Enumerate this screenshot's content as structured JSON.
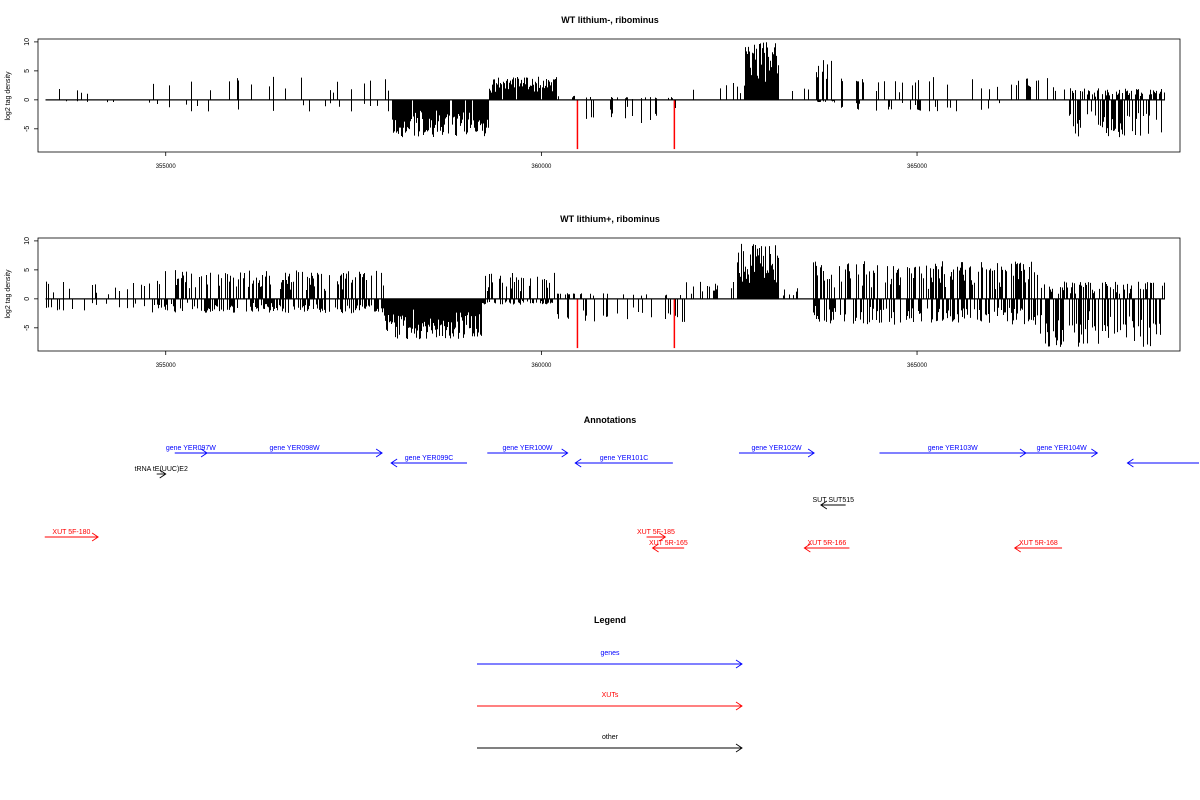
{
  "chart_data": [
    {
      "type": "bar",
      "title": "WT lithium-, ribominus",
      "ylabel": "log2 tag density",
      "xlim": [
        353300,
        368500
      ],
      "ylim": [
        -9,
        10.5
      ],
      "xticks": [
        355000,
        360000,
        365000
      ],
      "xtick_labels": [
        "355000",
        "360000",
        "365000"
      ],
      "yticks": [
        -5,
        0,
        5,
        10
      ],
      "ytick_labels": [
        "-5",
        "0",
        "5",
        "10"
      ],
      "line_color": "#000000",
      "highlight_color": "#ff0000",
      "highlights": [
        {
          "x": 360480,
          "value": -8.5
        },
        {
          "x": 361770,
          "value": -8.5
        }
      ],
      "segments": [
        {
          "from": 353400,
          "to": 354800,
          "min": -0.5,
          "max": 2.0,
          "density": 0.1
        },
        {
          "from": 354800,
          "to": 358000,
          "min": -2.0,
          "max": 4.0,
          "density": 0.16
        },
        {
          "from": 358000,
          "to": 359300,
          "min": -6.5,
          "max": 0.0,
          "density": 0.95
        },
        {
          "from": 359300,
          "to": 360200,
          "min": 0.0,
          "max": 4.0,
          "density": 0.95
        },
        {
          "from": 360200,
          "to": 360500,
          "min": 0.0,
          "max": 1.0,
          "density": 0.2
        },
        {
          "from": 360500,
          "to": 361800,
          "min": -4.0,
          "max": 0.5,
          "density": 0.35
        },
        {
          "from": 361800,
          "to": 362700,
          "min": 0.0,
          "max": 3.0,
          "density": 0.1
        },
        {
          "from": 362700,
          "to": 363150,
          "min": 0.0,
          "max": 10.0,
          "density": 1.0
        },
        {
          "from": 363150,
          "to": 363650,
          "min": 0.0,
          "max": 2.0,
          "density": 0.05
        },
        {
          "from": 363650,
          "to": 363900,
          "min": -0.5,
          "max": 7.5,
          "density": 1.0
        },
        {
          "from": 363900,
          "to": 366200,
          "min": -2.0,
          "max": 4.0,
          "density": 0.22
        },
        {
          "from": 366200,
          "to": 367000,
          "min": 0.0,
          "max": 4.0,
          "density": 0.25
        },
        {
          "from": 367000,
          "to": 368300,
          "min": -6.5,
          "max": 2.0,
          "density": 0.95
        }
      ]
    },
    {
      "type": "bar",
      "title": "WT lithium+, ribominus",
      "ylabel": "log2 tag density",
      "xlim": [
        353300,
        368500
      ],
      "ylim": [
        -9,
        10.5
      ],
      "xticks": [
        355000,
        360000,
        365000
      ],
      "xtick_labels": [
        "355000",
        "360000",
        "365000"
      ],
      "yticks": [
        -5,
        0,
        5,
        10
      ],
      "ytick_labels": [
        "-5",
        "0",
        "5",
        "10"
      ],
      "line_color": "#000000",
      "highlight_color": "#ff0000",
      "highlights": [
        {
          "x": 360480,
          "value": -8.5
        },
        {
          "x": 361770,
          "value": -8.5
        }
      ],
      "segments": [
        {
          "from": 353400,
          "to": 354800,
          "min": -2.0,
          "max": 3.0,
          "density": 0.3
        },
        {
          "from": 354800,
          "to": 357900,
          "min": -2.5,
          "max": 5.0,
          "density": 0.95
        },
        {
          "from": 357900,
          "to": 359200,
          "min": -7.0,
          "max": 0.0,
          "density": 1.0
        },
        {
          "from": 359200,
          "to": 360200,
          "min": -1.0,
          "max": 4.5,
          "density": 0.95
        },
        {
          "from": 360200,
          "to": 361900,
          "min": -4.0,
          "max": 1.0,
          "density": 0.45
        },
        {
          "from": 361900,
          "to": 362600,
          "min": 0.0,
          "max": 3.0,
          "density": 0.2
        },
        {
          "from": 362600,
          "to": 363150,
          "min": 0.0,
          "max": 9.5,
          "density": 1.0
        },
        {
          "from": 363150,
          "to": 363600,
          "min": 0.0,
          "max": 2.0,
          "density": 0.15
        },
        {
          "from": 363600,
          "to": 366600,
          "min": -4.5,
          "max": 6.5,
          "density": 1.0
        },
        {
          "from": 366600,
          "to": 368300,
          "min": -8.5,
          "max": 3.0,
          "density": 1.0
        }
      ]
    }
  ],
  "annotations": {
    "title": "Annotations",
    "xlim": [
      353300,
      368500
    ],
    "colors": {
      "genes": "#0000ff",
      "XUTs": "#ff0000",
      "other": "#000000"
    },
    "features": [
      {
        "label": "gene YER097W",
        "kind": "genes",
        "start": 355120,
        "end": 355550,
        "dir": "right",
        "lane": 0
      },
      {
        "label": "gene YER098W",
        "kind": "genes",
        "start": 355550,
        "end": 357880,
        "dir": "right",
        "lane": 0
      },
      {
        "label": "gene YER099C",
        "kind": "genes",
        "start": 358000,
        "end": 359010,
        "dir": "left",
        "lane": 1
      },
      {
        "label": "gene YER100W",
        "kind": "genes",
        "start": 359280,
        "end": 360350,
        "dir": "right",
        "lane": 0
      },
      {
        "label": "gene YER101C",
        "kind": "genes",
        "start": 360450,
        "end": 361750,
        "dir": "left",
        "lane": 1
      },
      {
        "label": "gene YER102W",
        "kind": "genes",
        "start": 362630,
        "end": 363630,
        "dir": "right",
        "lane": 0
      },
      {
        "label": "gene YER103W",
        "kind": "genes",
        "start": 364500,
        "end": 366450,
        "dir": "right",
        "lane": 0
      },
      {
        "label": "gene YER104W",
        "kind": "genes",
        "start": 366450,
        "end": 367400,
        "dir": "right",
        "lane": 0
      },
      {
        "label": "",
        "kind": "genes",
        "start": 367800,
        "end": 368800,
        "dir": "left",
        "lane": 1
      },
      {
        "label": "tRNA tE(UUC)E2",
        "kind": "other",
        "start": 354880,
        "end": 355000,
        "dir": "right",
        "lane": 2
      },
      {
        "label": "SUT SUT515",
        "kind": "other",
        "start": 363720,
        "end": 364050,
        "dir": "left",
        "lane": 4
      },
      {
        "label": "XUT 5F-180",
        "kind": "XUTs",
        "start": 353390,
        "end": 354100,
        "dir": "right",
        "lane": 6
      },
      {
        "label": "XUT 5F-185",
        "kind": "XUTs",
        "start": 361400,
        "end": 361650,
        "dir": "right",
        "lane": 6
      },
      {
        "label": "XUT 5R-165",
        "kind": "XUTs",
        "start": 361480,
        "end": 361900,
        "dir": "left",
        "lane": 7
      },
      {
        "label": "XUT 5R-166",
        "kind": "XUTs",
        "start": 363500,
        "end": 364100,
        "dir": "left",
        "lane": 7
      },
      {
        "label": "XUT 5R-168",
        "kind": "XUTs",
        "start": 366300,
        "end": 366930,
        "dir": "left",
        "lane": 7
      }
    ]
  },
  "legend": {
    "title": "Legend",
    "entries": [
      {
        "label": "genes",
        "color": "#0000ff"
      },
      {
        "label": "XUTs",
        "color": "#ff0000"
      },
      {
        "label": "other",
        "color": "#000000"
      }
    ]
  }
}
